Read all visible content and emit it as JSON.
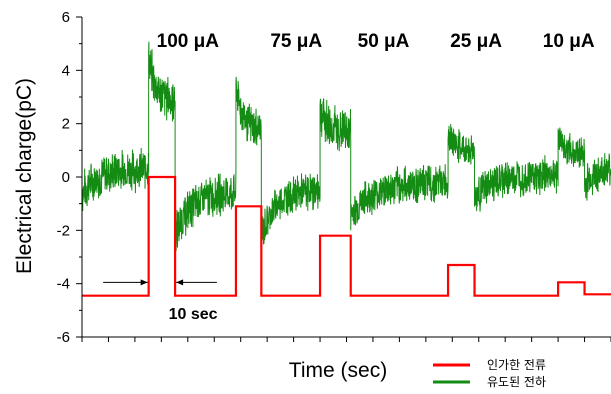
{
  "chart_data": {
    "type": "line",
    "title": "",
    "xlabel": "Time (sec)",
    "ylabel": "Electrical charge(pC)",
    "ylim": [
      -6,
      6
    ],
    "yticks": [
      "6",
      "4",
      "2",
      "0",
      "-2",
      "-4",
      "-6"
    ],
    "xlim": [
      0,
      100
    ],
    "grid": false,
    "legend_position": "bottom-right",
    "colors": {
      "applied_current": "#ff0000",
      "induced_charge": "#148c14"
    },
    "current_labels": [
      {
        "text": "100 μA",
        "x": 20
      },
      {
        "text": "75 μA",
        "x": 40.5
      },
      {
        "text": "50 μA",
        "x": 57
      },
      {
        "text": "25 μA",
        "x": 74.5
      },
      {
        "text": "10 μA",
        "x": 92
      }
    ],
    "annotation": {
      "text": "10 sec",
      "x": 21,
      "y": -5.1
    },
    "series": [
      {
        "name": "인가한 전류",
        "color": "#ff0000",
        "x": [
          0,
          12.6,
          12.6,
          17.6,
          17.6,
          29.1,
          29.1,
          33.9,
          33.9,
          45.0,
          45.0,
          50.8,
          50.8,
          69.2,
          69.2,
          74.2,
          74.2,
          90.0,
          90.0,
          95.0,
          95.0,
          100
        ],
        "y": [
          -4.45,
          -4.45,
          0.0,
          0.0,
          -4.45,
          -4.45,
          -1.1,
          -1.1,
          -4.45,
          -4.45,
          -2.2,
          -2.2,
          -4.45,
          -4.45,
          -3.3,
          -3.3,
          -4.45,
          -4.45,
          -3.95,
          -3.95,
          -4.4,
          -4.4
        ]
      },
      {
        "name": "유도된 전하",
        "color": "#148c14",
        "segments": [
          {
            "x0": 0,
            "x1": 12.6,
            "y0": -0.6,
            "y1": 0.3,
            "amp": 0.9
          },
          {
            "x0": 12.6,
            "x1": 17.6,
            "y0": 4.5,
            "y1": 2.9,
            "amp": 1.0
          },
          {
            "x0": 17.6,
            "x1": 29.1,
            "y0": -2.2,
            "y1": -0.6,
            "amp": 0.9
          },
          {
            "x0": 29.1,
            "x1": 33.9,
            "y0": 3.5,
            "y1": 1.8,
            "amp": 0.9
          },
          {
            "x0": 33.9,
            "x1": 45.0,
            "y0": -2.2,
            "y1": -0.5,
            "amp": 0.8
          },
          {
            "x0": 45.0,
            "x1": 50.8,
            "y0": 2.6,
            "y1": 1.7,
            "amp": 1.0
          },
          {
            "x0": 50.8,
            "x1": 69.2,
            "y0": -1.4,
            "y1": -0.2,
            "amp": 0.8
          },
          {
            "x0": 69.2,
            "x1": 74.2,
            "y0": 1.7,
            "y1": 1.0,
            "amp": 0.7
          },
          {
            "x0": 74.2,
            "x1": 90.0,
            "y0": -0.8,
            "y1": 0.1,
            "amp": 0.8
          },
          {
            "x0": 90.0,
            "x1": 95.0,
            "y0": 1.6,
            "y1": 0.9,
            "amp": 0.7
          },
          {
            "x0": 95.0,
            "x1": 100,
            "y0": -0.4,
            "y1": 0.2,
            "amp": 0.8
          }
        ]
      }
    ],
    "legend": [
      {
        "label": "인가한 전류",
        "color": "#ff0000"
      },
      {
        "label": "유도된 전하",
        "color": "#148c14"
      }
    ]
  }
}
